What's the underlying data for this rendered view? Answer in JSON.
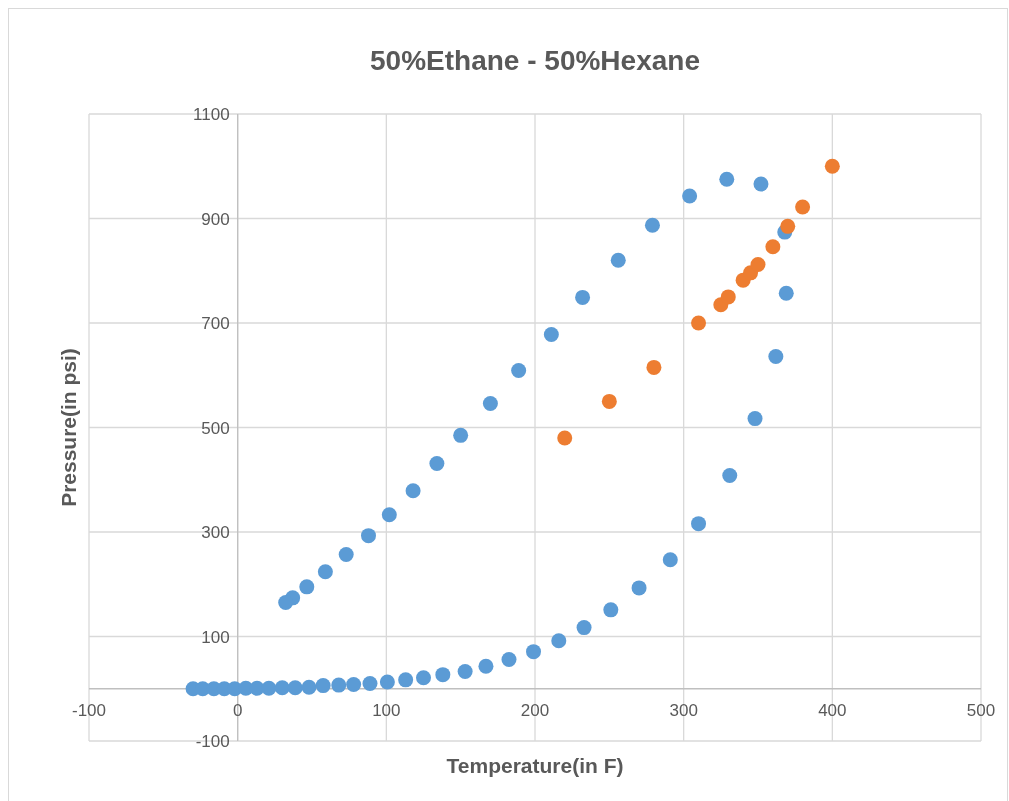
{
  "chart_data": {
    "type": "scatter",
    "title": "50%Ethane - 50%Hexane",
    "xlabel": "Temperature(in F)",
    "ylabel": "Pressure(in psi)",
    "xlim": [
      -100,
      500
    ],
    "xticks": [
      -100,
      0,
      100,
      200,
      300,
      400,
      500
    ],
    "ylim": [
      -100,
      1100
    ],
    "yticks": [
      -100,
      100,
      300,
      500,
      700,
      900,
      1100
    ],
    "grid": true,
    "marker": "circle",
    "series": [
      {
        "color": "#5b9bd5",
        "x": [
          -30,
          -23.5,
          -16,
          -9,
          -2,
          5.5,
          13,
          21,
          30,
          38.7,
          48,
          57.5,
          68,
          78,
          89,
          100.7,
          113,
          125,
          138,
          153,
          167,
          182.5,
          199,
          216,
          233,
          251,
          270,
          291,
          310,
          331,
          348,
          362,
          369,
          368,
          352,
          329,
          304,
          279,
          256,
          232,
          211,
          189,
          170,
          150,
          134,
          118,
          102,
          88,
          73,
          59,
          46.5,
          37,
          32.3
        ],
        "values": [
          0,
          0,
          0,
          0,
          0,
          1,
          1,
          1,
          2,
          2,
          3,
          6,
          7,
          8,
          10,
          13,
          17,
          21,
          27,
          33,
          43,
          56,
          71,
          92,
          117,
          151,
          193,
          247,
          316,
          408,
          517,
          636,
          757,
          874,
          966,
          975,
          943,
          887,
          820,
          749,
          678,
          609,
          546,
          485,
          431,
          379,
          333,
          293,
          257,
          224,
          195,
          174,
          165
        ]
      },
      {
        "color": "#ed7d31",
        "x": [
          220,
          250,
          280,
          310,
          325,
          330,
          340,
          345,
          350,
          360,
          370,
          380,
          400
        ],
        "values": [
          480,
          550,
          615,
          700,
          735,
          750,
          782,
          796,
          812,
          846,
          885,
          922,
          1000
        ]
      }
    ]
  }
}
